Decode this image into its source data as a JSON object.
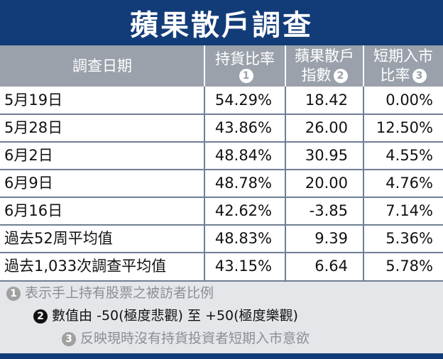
{
  "title": "蘋果散戶調查",
  "columns": [
    {
      "label": "調查日期",
      "badge": ""
    },
    {
      "label": "持貨比率",
      "badge": "1"
    },
    {
      "label_line1": "蘋果散戶",
      "label_line2": "指數",
      "badge": "2"
    },
    {
      "label_line1": "短期入市",
      "label_line2": "比率",
      "badge": "3"
    }
  ],
  "rows": [
    {
      "date": "5月19日",
      "holding": "54.29%",
      "index": "18.42",
      "short": "0.00%"
    },
    {
      "date": "5月28日",
      "holding": "43.86%",
      "index": "26.00",
      "short": "12.50%"
    },
    {
      "date": "6月2日",
      "holding": "48.84%",
      "index": "30.95",
      "short": "4.55%"
    },
    {
      "date": "6月9日",
      "holding": "48.78%",
      "index": "20.00",
      "short": "4.76%"
    },
    {
      "date": "6月16日",
      "holding": "42.62%",
      "index": "-3.85",
      "short": "7.14%"
    },
    {
      "date": "過去52周平均值",
      "holding": "48.83%",
      "index": "9.39",
      "short": "5.36%"
    },
    {
      "date": "過去1,033次調查平均值",
      "holding": "43.15%",
      "index": "6.64",
      "short": "5.78%"
    }
  ],
  "notes": [
    {
      "badge": "1",
      "text": "表示手上持有股票之被訪者比例"
    },
    {
      "badge": "2",
      "text": "數值由 -50(極度悲觀) 至 +50(極度樂觀)"
    },
    {
      "badge": "3",
      "text": "反映現時沒有持貨投資者短期入市意欲"
    }
  ],
  "colors": {
    "title_bg": "#123c78",
    "header_bg": "#9aa1ab",
    "notes_bg": "#e4e6e9"
  }
}
